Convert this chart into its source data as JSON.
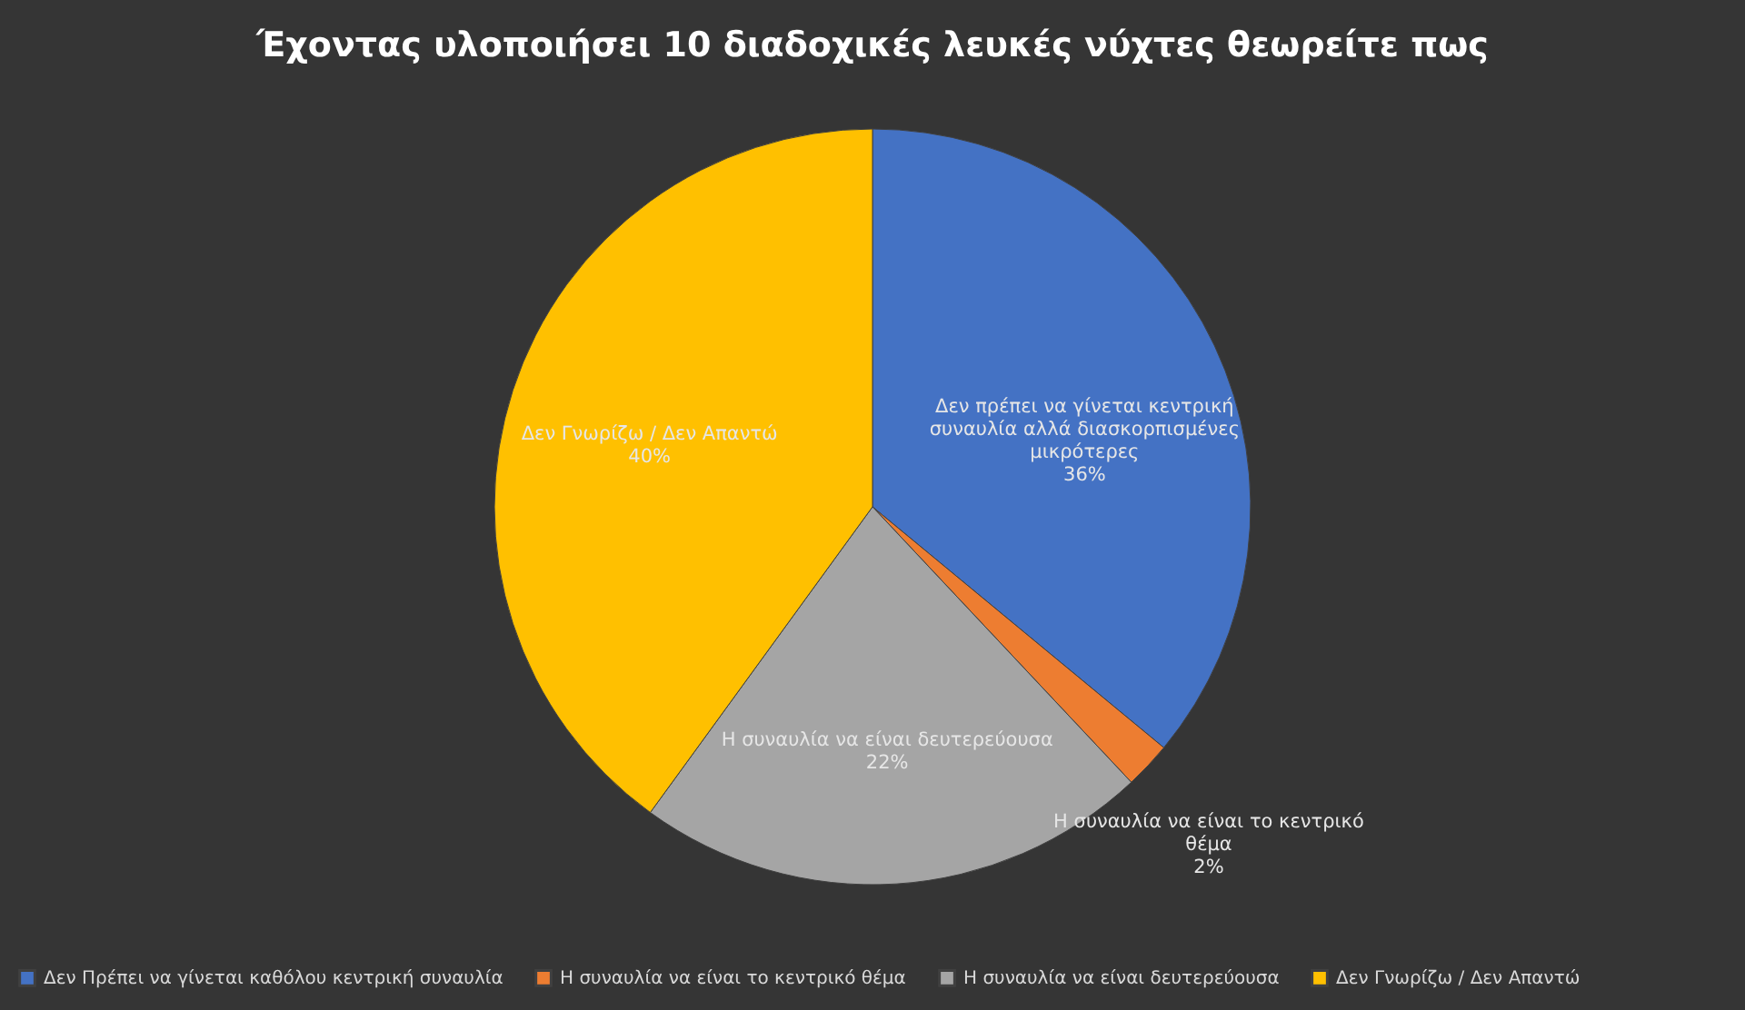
{
  "chart_data": {
    "type": "pie",
    "title": "Έχοντας υλοποιήσει 10 διαδοχικές λευκές νύχτες θεωρείτε πως",
    "categories": [
      "Δεν Πρέπει να γίνεται καθόλου κεντρική συναυλία",
      "Η συναυλία να είναι το κεντρικό θέμα",
      "Η συναυλία να είναι δευτερεύουσα",
      "Δεν Γνωρίζω / Δεν Απαντώ"
    ],
    "values": [
      36,
      2,
      22,
      40
    ],
    "colors": [
      "#4472c4",
      "#ed7d31",
      "#a5a5a5",
      "#ffc000"
    ],
    "value_labels": [
      "Δεν πρέπει να γίνεται κεντρική\nσυναυλία αλλά διασκορπισμένες\nμικρότερες\n36%",
      "Η συναυλία να είναι το κεντρικό\nθέμα\n2%",
      "Η συναυλία να είναι δευτερεύουσα\n22%",
      "Δεν Γνωρίζω / Δεν Απαντώ\n40%"
    ],
    "legend": "bottom"
  }
}
